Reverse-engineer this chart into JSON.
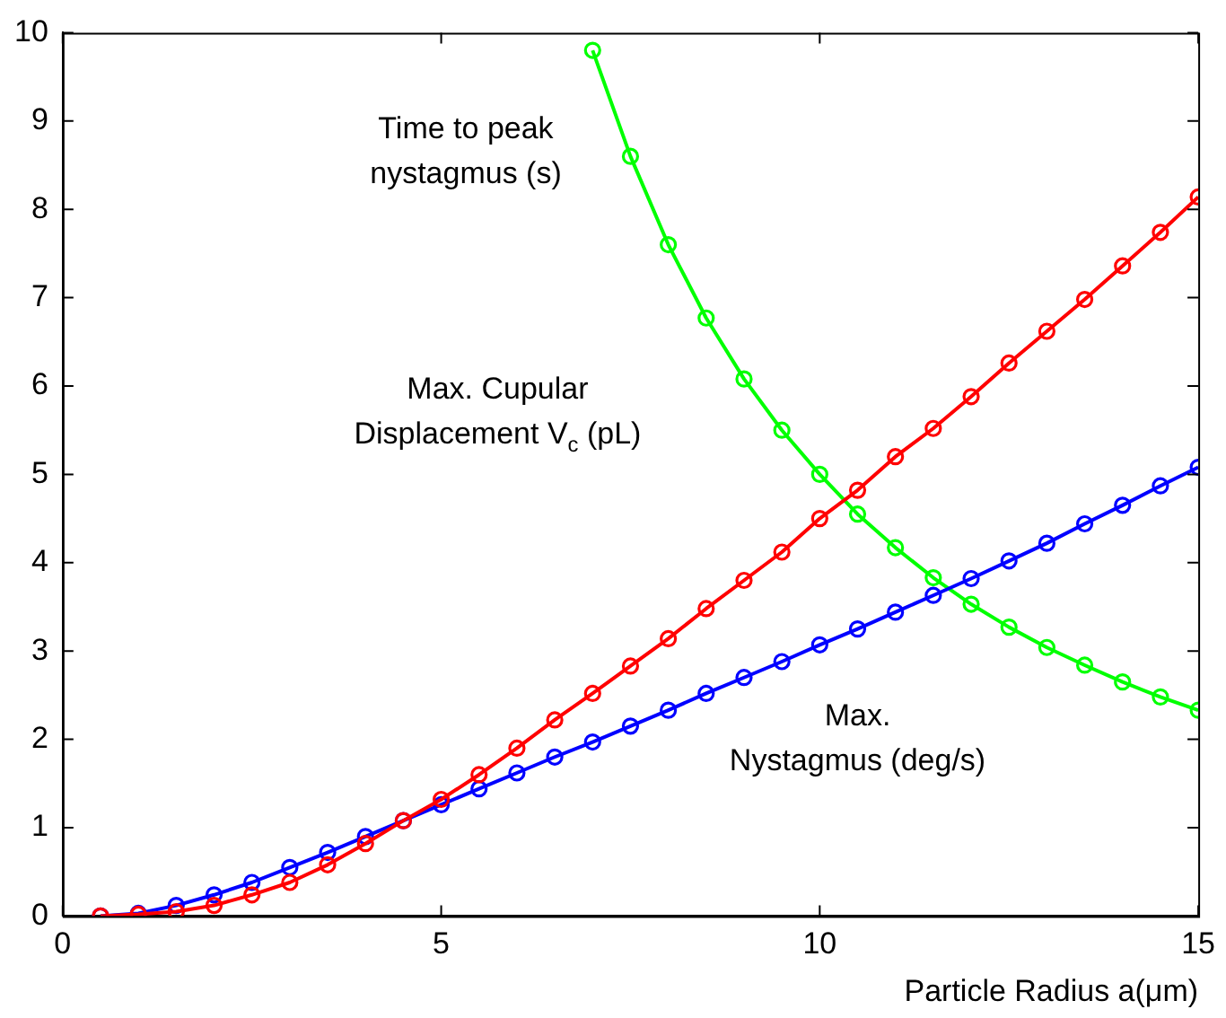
{
  "chart_data": {
    "type": "line",
    "xlabel": "Particle Radius a(μm)",
    "xlim": [
      0,
      15
    ],
    "xticks": [
      0,
      5,
      10,
      15
    ],
    "ylim": [
      0,
      10
    ],
    "yticks": [
      0,
      1,
      2,
      3,
      4,
      5,
      6,
      7,
      8,
      9,
      10
    ],
    "grid": false,
    "legend": false,
    "marker": "circle",
    "line_style": "solid",
    "series": [
      {
        "color": "#ff0000",
        "x": [
          0.5,
          1,
          1.5,
          2,
          2.5,
          3,
          3.5,
          4,
          4.5,
          5,
          5.5,
          6,
          6.5,
          7,
          7.5,
          8,
          8.5,
          9,
          9.5,
          10,
          10.5,
          11,
          11.5,
          12,
          12.5,
          13,
          13.5,
          14,
          14.5,
          15
        ],
        "values": [
          0,
          0.02,
          0.05,
          0.12,
          0.24,
          0.38,
          0.58,
          0.82,
          1.08,
          1.32,
          1.6,
          1.9,
          2.22,
          2.52,
          2.83,
          3.14,
          3.48,
          3.8,
          4.12,
          4.5,
          4.82,
          5.2,
          5.52,
          5.88,
          6.26,
          6.62,
          6.98,
          7.36,
          7.74,
          8.14
        ]
      },
      {
        "color": "#0000ff",
        "x": [
          0.5,
          1,
          1.5,
          2,
          2.5,
          3,
          3.5,
          4,
          4.5,
          5,
          5.5,
          6,
          6.5,
          7,
          7.5,
          8,
          8.5,
          9,
          9.5,
          10,
          10.5,
          11,
          11.5,
          12,
          12.5,
          13,
          13.5,
          14,
          14.5,
          15
        ],
        "values": [
          0,
          0.03,
          0.12,
          0.24,
          0.38,
          0.55,
          0.72,
          0.9,
          1.08,
          1.26,
          1.44,
          1.62,
          1.8,
          1.97,
          2.15,
          2.33,
          2.52,
          2.7,
          2.88,
          3.07,
          3.25,
          3.44,
          3.63,
          3.82,
          4.02,
          4.22,
          4.44,
          4.65,
          4.87,
          5.08
        ]
      },
      {
        "color": "#00ff00",
        "x": [
          7,
          7.5,
          8,
          8.5,
          9,
          9.5,
          10,
          10.5,
          11,
          11.5,
          12,
          12.5,
          13,
          13.5,
          14,
          14.5,
          15
        ],
        "values": [
          9.8,
          8.6,
          7.6,
          6.77,
          6.08,
          5.5,
          5.0,
          4.55,
          4.17,
          3.83,
          3.53,
          3.27,
          3.04,
          2.84,
          2.65,
          2.48,
          2.33
        ]
      }
    ],
    "annotations": [
      "Time to peak\nnystagmus (s)",
      "Max. Cupular\nDisplacement V$_{c}$ (pL)",
      "Max.\nNystagmus (deg/s)"
    ]
  }
}
